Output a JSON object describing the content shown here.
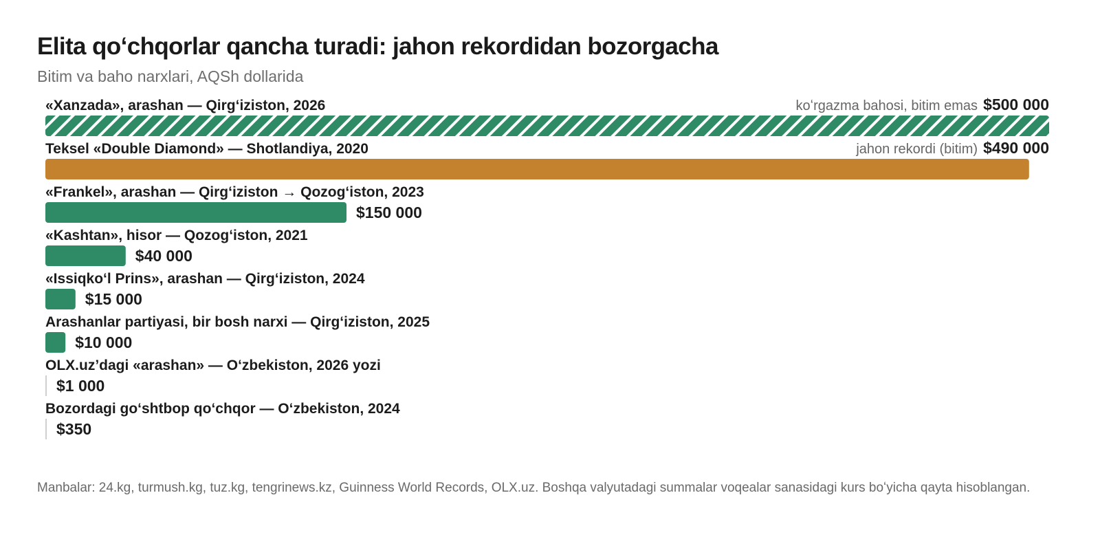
{
  "title": "Elita qoʻchqorlar qancha turadi: jahon rekordidan bozorgacha",
  "subtitle": "Bitim va baho narxlari, AQSh dollarida",
  "source": "Manbalar: 24.kg, turmush.kg, tuz.kg, tengrinews.kz, Guinness World Records, OLX.uz. Boshqa valyutadagi summalar voqealar sanasidagi kurs boʻyicha qayta hisoblangan.",
  "colors": {
    "green": "#2e8b66",
    "orange": "#c4812e",
    "marker": "#cfcfcf"
  },
  "chart_data": {
    "type": "bar",
    "orientation": "horizontal",
    "title": "Elita qoʻchqorlar qancha turadi: jahon rekordidan bozorgacha",
    "subtitle": "Bitim va baho narxlari, AQSh dollarida",
    "xlim": [
      0,
      500000
    ],
    "grid": false,
    "categories": [
      "«Xanzada», arashan — Qirgʻiziston, 2026",
      "Teksel «Double Diamond» — Shotlandiya, 2020",
      "«Frankel», arashan — Qirgʻiziston → Qozogʻiston, 2023",
      "«Kashtan», hisor — Qozogʻiston, 2021",
      "«Issiqkoʻl Prins», arashan — Qirgʻiziston, 2024",
      "Arashanlar partiyasi, bir bosh narxi — Qirgʻiziston, 2025",
      "OLX.uz’dagi «arashan» — Oʻzbekiston, 2026 yozi",
      "Bozordagi goʻshtbop qoʻchqor — Oʻzbekiston, 2024"
    ],
    "values": [
      500000,
      490000,
      150000,
      40000,
      15000,
      10000,
      1000,
      350
    ],
    "value_labels": [
      "$500 000",
      "$490 000",
      "$150 000",
      "$40 000",
      "$15 000",
      "$10 000",
      "$1 000",
      "$350"
    ],
    "notes": [
      "koʻrgazma bahosi, bitim emas",
      "jahon rekordi (bitim)",
      "",
      "",
      "",
      "",
      "",
      ""
    ],
    "styles": [
      "hatched",
      "highlight",
      "solid",
      "solid",
      "solid",
      "solid",
      "marker",
      "marker"
    ]
  }
}
